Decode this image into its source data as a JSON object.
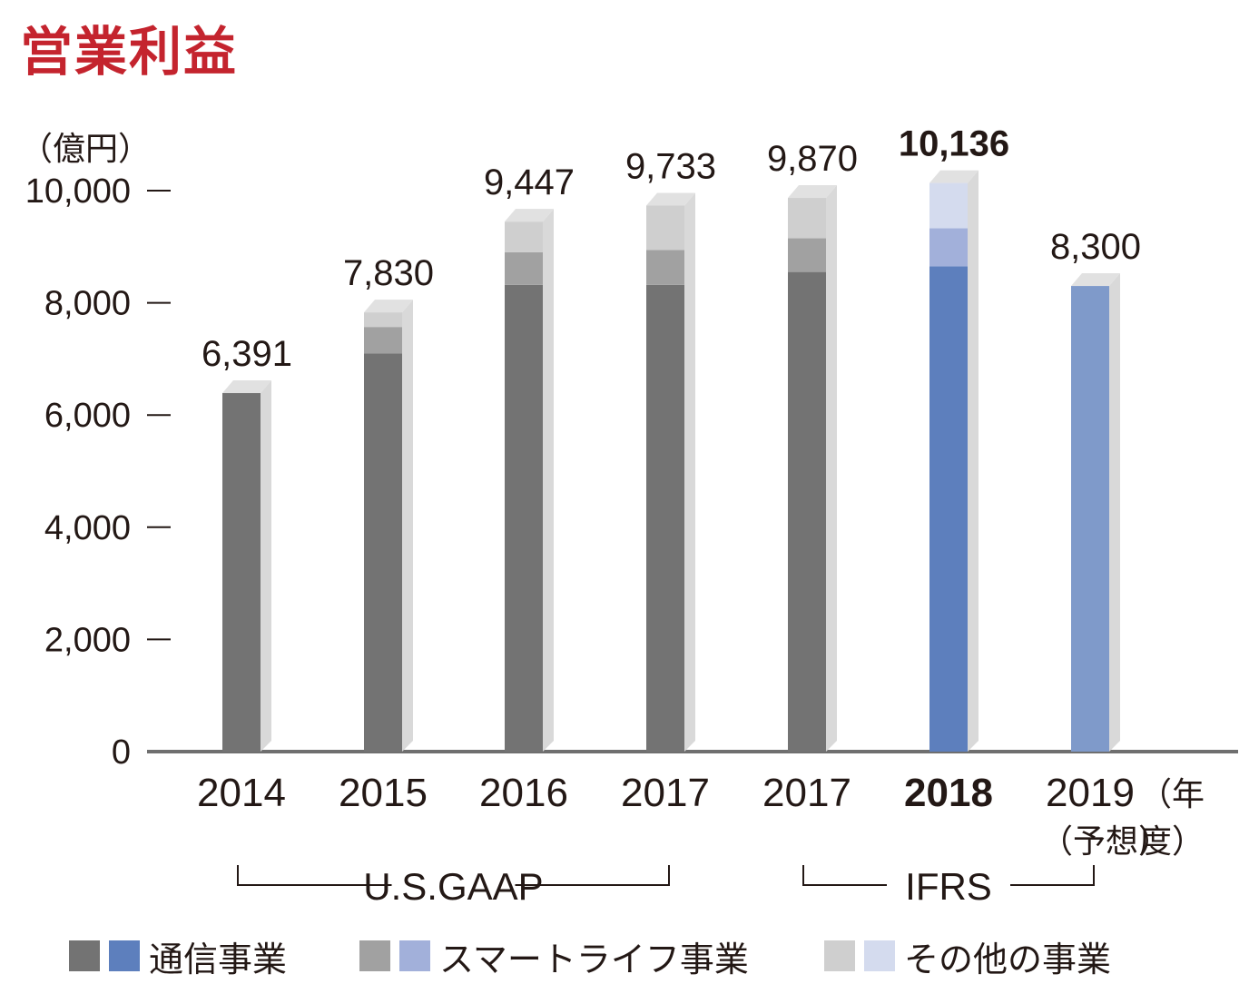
{
  "title": "営業利益",
  "unit_label": "（億円）",
  "year_suffix": "（年度）",
  "forecast_note": "（予想）",
  "colors": {
    "title": "#c4242e",
    "telecom_gaap": "#737373",
    "smartlife_gaap": "#a1a1a1",
    "other_gaap": "#cfcfcf",
    "telecom_ifrs": "#5d7fbd",
    "smartlife_ifrs": "#a2b0da",
    "other_ifrs": "#d4dbee",
    "forecast": "#7f9aca"
  },
  "legend": [
    {
      "label": "通信事業",
      "colors": [
        "#737373",
        "#5d7fbd"
      ]
    },
    {
      "label": "スマートライフ事業",
      "colors": [
        "#a1a1a1",
        "#a2b0da"
      ]
    },
    {
      "label": "その他の事業",
      "colors": [
        "#cfcfcf",
        "#d4dbee"
      ]
    }
  ],
  "chart_data": {
    "type": "bar",
    "stacked": true,
    "title": "営業利益",
    "ylabel": "（億円）",
    "xlabel": "（年度）",
    "ylim": [
      0,
      10000
    ],
    "yticks": [
      0,
      2000,
      4000,
      6000,
      8000,
      10000
    ],
    "ytick_labels": [
      "0",
      "2,000",
      "4,000",
      "6,000",
      "8,000",
      "10,000"
    ],
    "categories": [
      "2014",
      "2015",
      "2016",
      "2017",
      "2017",
      "2018",
      "2019"
    ],
    "totals": [
      6391,
      7830,
      9447,
      9733,
      9870,
      10136,
      8300
    ],
    "total_labels": [
      "6,391",
      "7,830",
      "9,447",
      "9,733",
      "9,870",
      "10,136",
      "8,300"
    ],
    "bold_category_index": 5,
    "series": [
      {
        "name": "通信事業",
        "values": [
          6391,
          7100,
          8320,
          8320,
          8550,
          8650,
          8300
        ]
      },
      {
        "name": "スマートライフ事業",
        "values": [
          0,
          470,
          580,
          620,
          600,
          680,
          0
        ]
      },
      {
        "name": "その他の事業",
        "values": [
          0,
          260,
          547,
          793,
          720,
          806,
          0
        ]
      }
    ],
    "groups": [
      {
        "label": "U.S.GAAP",
        "from": 0,
        "to": 3
      },
      {
        "label": "IFRS",
        "from": 4,
        "to": 6
      }
    ]
  }
}
